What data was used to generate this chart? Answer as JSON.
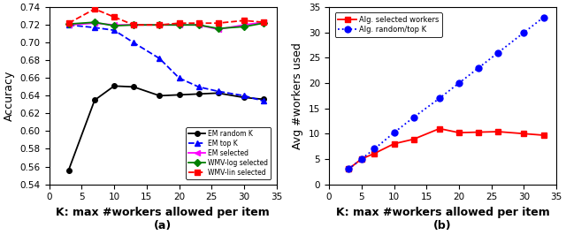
{
  "left": {
    "xlabel": "K: max #workers allowed per item",
    "ylabel": "Accuracy",
    "subtitle": "(a)",
    "xlim": [
      2,
      35
    ],
    "ylim": [
      0.54,
      0.74
    ],
    "yticks": [
      0.54,
      0.56,
      0.58,
      0.6,
      0.62,
      0.64,
      0.66,
      0.68,
      0.7,
      0.72,
      0.74
    ],
    "xticks": [
      0,
      5,
      10,
      15,
      20,
      25,
      30,
      35
    ],
    "K": [
      3,
      7,
      10,
      13,
      17,
      20,
      23,
      26,
      30,
      33
    ],
    "em_random": [
      0.556,
      0.635,
      0.651,
      0.65,
      0.64,
      0.641,
      0.642,
      0.643,
      0.638,
      0.636
    ],
    "em_top": [
      0.72,
      0.717,
      0.714,
      0.7,
      0.682,
      0.66,
      0.65,
      0.645,
      0.64,
      0.634
    ],
    "em_selected": [
      0.72,
      0.722,
      0.72,
      0.72,
      0.72,
      0.72,
      0.72,
      0.715,
      0.72,
      0.723
    ],
    "wmv_log": [
      0.721,
      0.723,
      0.719,
      0.72,
      0.72,
      0.72,
      0.72,
      0.716,
      0.718,
      0.722
    ],
    "wmv_lin": [
      0.722,
      0.738,
      0.729,
      0.72,
      0.72,
      0.722,
      0.722,
      0.722,
      0.725,
      0.723
    ],
    "colors": {
      "em_random": "#000000",
      "em_top": "#0000ff",
      "em_selected": "#ff00ff",
      "wmv_log": "#008000",
      "wmv_lin": "#ff0000"
    },
    "legend": [
      "EM random K",
      "EM top K",
      "EM selected",
      "WMV-log selected",
      "WMV-lin selected"
    ]
  },
  "right": {
    "xlabel": "K: max #workers allowed per item",
    "ylabel": "Avg #workers used",
    "subtitle": "(b)",
    "xlim": [
      2,
      35
    ],
    "ylim": [
      0,
      35
    ],
    "yticks": [
      0,
      5,
      10,
      15,
      20,
      25,
      30,
      35
    ],
    "xticks": [
      0,
      5,
      10,
      15,
      20,
      25,
      30,
      35
    ],
    "K": [
      3,
      5,
      7,
      10,
      13,
      17,
      20,
      23,
      26,
      30,
      33
    ],
    "alg_selected": [
      3.0,
      5.0,
      6.1,
      8.0,
      8.9,
      11.0,
      10.2,
      10.3,
      10.4,
      10.0,
      9.7
    ],
    "alg_random": [
      3.0,
      5.0,
      7.0,
      10.2,
      13.2,
      17.0,
      20.0,
      23.0,
      26.0,
      30.0,
      33.0
    ],
    "colors": {
      "alg_selected": "#ff0000",
      "alg_random": "#0000ff"
    },
    "legend": [
      "Alg. selected workers",
      "Alg. random/top K"
    ]
  },
  "bg_color": "#ffffff",
  "label_fontsize": 9,
  "tick_fontsize": 7.5,
  "line_width": 1.3,
  "marker_size": 4
}
